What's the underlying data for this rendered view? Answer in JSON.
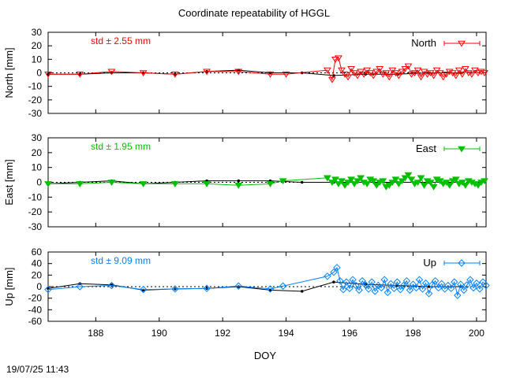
{
  "chart_data": {
    "type": "line",
    "title": "Coordinate repeatability of HGGL",
    "xlabel": "DOY",
    "xlim": [
      186.5,
      200.3
    ],
    "xticks": [
      188,
      190,
      192,
      194,
      196,
      198,
      200
    ],
    "timestamp": "19/07/25 11:43",
    "panels": [
      {
        "id": "north",
        "ylabel": "North [mm]",
        "ylim": [
          -30,
          30
        ],
        "yticks": [
          -30,
          -20,
          -10,
          0,
          10,
          20,
          30
        ],
        "std_label": "std ± 2.55 mm",
        "legend": "North",
        "color": "#ff0000",
        "marker": "triangle-down-open",
        "series_x": [
          186.5,
          187.5,
          188.5,
          189.5,
          190.5,
          191.5,
          192.5,
          193.5,
          194.0,
          195.3,
          195.45,
          195.55,
          195.65,
          195.75,
          195.85,
          195.95,
          196.05,
          196.15,
          196.25,
          196.35,
          196.45,
          196.55,
          196.65,
          196.75,
          196.85,
          196.95,
          197.05,
          197.15,
          197.25,
          197.35,
          197.45,
          197.55,
          197.65,
          197.75,
          197.85,
          197.95,
          198.05,
          198.15,
          198.25,
          198.35,
          198.45,
          198.55,
          198.65,
          198.75,
          198.85,
          198.95,
          199.05,
          199.15,
          199.25,
          199.35,
          199.45,
          199.55,
          199.65,
          199.75,
          199.85,
          199.95,
          200.05,
          200.15,
          200.25
        ],
        "series_y": [
          -1,
          -1,
          1,
          0,
          -1,
          1,
          1,
          -1,
          -1,
          2,
          -5,
          10,
          11,
          2,
          -1,
          -3,
          3,
          0,
          -2,
          1,
          -1,
          2,
          0,
          -2,
          1,
          3,
          -1,
          0,
          -3,
          2,
          0,
          -2,
          1,
          3,
          5,
          -1,
          0,
          2,
          -3,
          1,
          -1,
          0,
          -2,
          2,
          0,
          -3,
          -1,
          1,
          0,
          -2,
          2,
          -1,
          3,
          0,
          -1,
          2,
          0,
          1,
          0
        ],
        "ref_x": [
          186.5,
          187.5,
          188.5,
          189.5,
          190.5,
          191.5,
          192.5,
          193.5,
          194.5,
          195.5,
          196.5,
          197.5,
          198.5,
          199.5
        ],
        "ref_y": [
          -1,
          -1,
          0,
          0,
          -1,
          1,
          2,
          0,
          0,
          -2,
          -1,
          -1,
          0,
          0
        ]
      },
      {
        "id": "east",
        "ylabel": "East [mm]",
        "ylim": [
          -30,
          30
        ],
        "yticks": [
          -30,
          -20,
          -10,
          0,
          10,
          20,
          30
        ],
        "std_label": "std ± 1.95 mm",
        "legend": "East",
        "color": "#00c000",
        "marker": "triangle-down-filled",
        "series_x": [
          186.5,
          187.5,
          188.5,
          189.5,
          190.5,
          191.5,
          192.5,
          193.5,
          193.9,
          195.3,
          195.45,
          195.55,
          195.65,
          195.75,
          195.85,
          195.95,
          196.05,
          196.15,
          196.25,
          196.35,
          196.45,
          196.55,
          196.65,
          196.75,
          196.85,
          196.95,
          197.05,
          197.15,
          197.25,
          197.35,
          197.45,
          197.55,
          197.65,
          197.75,
          197.85,
          197.95,
          198.05,
          198.15,
          198.25,
          198.35,
          198.45,
          198.55,
          198.65,
          198.75,
          198.85,
          198.95,
          199.05,
          199.15,
          199.25,
          199.35,
          199.45,
          199.55,
          199.65,
          199.75,
          199.85,
          199.95,
          200.05,
          200.15,
          200.25
        ],
        "series_y": [
          -1,
          -1,
          0,
          -1,
          -1,
          -1,
          -2,
          -1,
          1,
          3,
          0,
          2,
          -1,
          1,
          -2,
          0,
          2,
          -1,
          1,
          3,
          0,
          -1,
          2,
          1,
          -2,
          0,
          1,
          -3,
          -2,
          0,
          2,
          -1,
          1,
          3,
          5,
          2,
          -1,
          0,
          3,
          -2,
          1,
          0,
          -3,
          2,
          1,
          -1,
          0,
          -2,
          1,
          2,
          -1,
          0,
          -2,
          1,
          0,
          -1,
          -2,
          0,
          1
        ],
        "ref_x": [
          186.5,
          187.5,
          188.5,
          189.5,
          190.5,
          191.5,
          192.5,
          193.5,
          194.5,
          195.5,
          196.5,
          197.5,
          198.5,
          199.5
        ],
        "ref_y": [
          -1,
          0,
          1,
          -1,
          0,
          1,
          1,
          1,
          0,
          0,
          0,
          0,
          0,
          0
        ]
      },
      {
        "id": "up",
        "ylabel": "Up [mm]",
        "ylim": [
          -60,
          60
        ],
        "yticks": [
          -60,
          -40,
          -20,
          0,
          20,
          40,
          60
        ],
        "std_label": "std ± 9.09 mm",
        "legend": "Up",
        "color": "#0080ff",
        "marker": "diamond-open",
        "series_x": [
          186.5,
          187.5,
          188.5,
          189.5,
          190.5,
          191.5,
          192.5,
          193.5,
          193.9,
          195.3,
          195.5,
          195.6,
          195.7,
          195.8,
          195.9,
          196.0,
          196.1,
          196.2,
          196.3,
          196.4,
          196.5,
          196.6,
          196.7,
          196.8,
          196.9,
          197.0,
          197.1,
          197.2,
          197.3,
          197.4,
          197.5,
          197.6,
          197.7,
          197.8,
          197.9,
          198.0,
          198.1,
          198.2,
          198.3,
          198.4,
          198.5,
          198.6,
          198.7,
          198.8,
          198.9,
          199.0,
          199.1,
          199.2,
          199.3,
          199.4,
          199.5,
          199.6,
          199.7,
          199.8,
          199.9,
          200.0,
          200.1,
          200.2,
          200.3
        ],
        "series_y": [
          -5,
          0,
          2,
          -5,
          -4,
          -3,
          1,
          -4,
          1,
          18,
          25,
          33,
          10,
          -5,
          8,
          -3,
          12,
          2,
          -6,
          10,
          3,
          -4,
          8,
          -8,
          2,
          -2,
          12,
          -10,
          5,
          -3,
          8,
          -5,
          2,
          10,
          -6,
          4,
          -2,
          12,
          -4,
          6,
          -12,
          3,
          10,
          -2,
          5,
          -4,
          2,
          -3,
          8,
          -15,
          4,
          -6,
          3,
          12,
          -2,
          6,
          -4,
          8,
          2
        ],
        "ref_x": [
          186.5,
          187.5,
          188.5,
          189.5,
          190.5,
          191.5,
          192.5,
          193.5,
          194.5,
          195.5,
          196.5,
          197.5,
          198.5,
          199.5
        ],
        "ref_y": [
          -3,
          5,
          3,
          -6,
          -4,
          -3,
          0,
          -6,
          -8,
          8,
          4,
          2,
          0,
          0
        ]
      }
    ]
  }
}
